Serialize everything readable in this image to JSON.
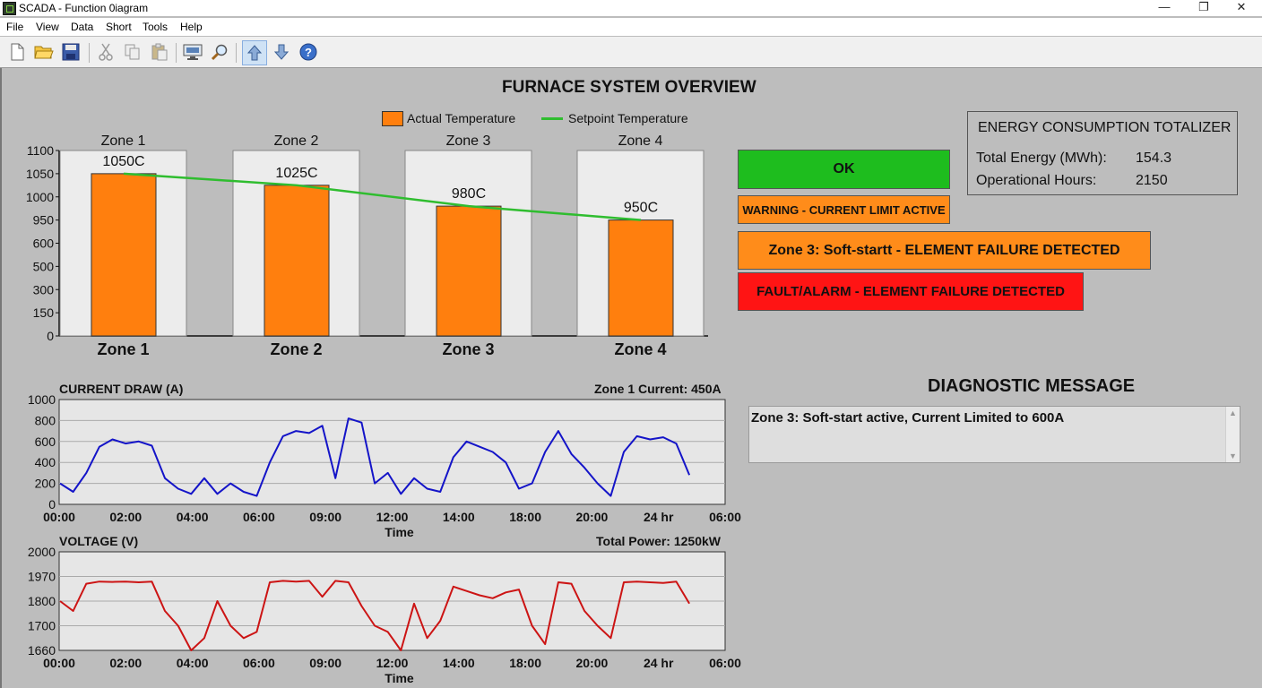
{
  "window": {
    "title": "SCADA - Function 0iagram",
    "minimize": "—",
    "maximize": "❐",
    "close": "✕"
  },
  "menu": [
    "File",
    "View",
    "Data",
    "Short",
    "Tools",
    "Help"
  ],
  "toolbar": [
    "new-file-icon",
    "open-folder-icon",
    "save-icon",
    "cut-icon",
    "copy-icon",
    "paste-icon",
    "monitor-icon",
    "search-icon",
    "arrow-up-icon",
    "arrow-down-icon",
    "help-icon"
  ],
  "overview": {
    "title": "FURNACE SYSTEM OVERVIEW",
    "legend_actual": "Actual Temperature",
    "legend_setpoint": "Setpoint Temperature"
  },
  "status": {
    "ok": "OK",
    "warning": "WARNING - CURRENT LIMIT ACTIVE",
    "zone3": "Zone 3: Soft-startt - ELEMENT FAILURE DETECTED",
    "fault": "FAULT/ALARM - ELEMENT FAILURE DETECTED",
    "colors": {
      "ok": "#1ebd1e",
      "warning": "#ff8c1a",
      "fault": "#ff1414"
    }
  },
  "energy": {
    "title": "ENERGY CONSUMPTION TOTALIZER",
    "total_label": "Total Energy (MWh):",
    "total_value": "154.3",
    "hours_label": "Operational Hours:",
    "hours_value": "2150"
  },
  "diagnostic": {
    "title": "DIAGNOSTIC MESSAGE",
    "message": "Zone 3: Soft-start active, Current Limited to 600A"
  },
  "chart_data": [
    {
      "type": "bar",
      "title": "",
      "y_ticks": [
        "1100",
        "1050",
        "1000",
        "950",
        "600",
        "500",
        "300",
        "150",
        "0"
      ],
      "categories": [
        "Zone 1",
        "Zone 2",
        "Zone 3",
        "Zone 4"
      ],
      "series": [
        {
          "name": "Actual Temperature",
          "values": [
            1050,
            1025,
            980,
            950
          ],
          "labels": [
            "1050C",
            "1025C",
            "980C",
            "950C"
          ],
          "color": "#ff7f0e"
        },
        {
          "name": "Setpoint Temperature",
          "values": [
            1050,
            1025,
            980,
            950
          ],
          "color": "#2fbd2f"
        }
      ],
      "grid": false
    },
    {
      "type": "line",
      "title": "CURRENT DRAW (A)",
      "annotation": "Zone 1 Current: 450A",
      "xlabel": "Time",
      "x_ticks": [
        "00:00",
        "02:00",
        "04:00",
        "06:00",
        "09:00",
        "12:00",
        "14:00",
        "18:00",
        "20:00",
        "24 hr",
        "06:00"
      ],
      "y_ticks": [
        "1000",
        "800",
        "600",
        "400",
        "200",
        "0"
      ],
      "ylim": [
        0,
        1000
      ],
      "series": [
        {
          "values": [
            200,
            120,
            300,
            550,
            620,
            580,
            600,
            560,
            250,
            150,
            100,
            250,
            100,
            200,
            120,
            80,
            400,
            650,
            700,
            680,
            750,
            250,
            820,
            780,
            200,
            300,
            100,
            250,
            150,
            120,
            450,
            600,
            550,
            500,
            400,
            150,
            200,
            500,
            700,
            480,
            350,
            200,
            80,
            500,
            650,
            620,
            640,
            580,
            280
          ],
          "color": "#1414c8"
        }
      ],
      "grid": true
    },
    {
      "type": "line",
      "title": "VOLTAGE (V)",
      "annotation": "Total Power: 1250kW",
      "xlabel": "Time",
      "x_ticks": [
        "00:00",
        "02:00",
        "04:00",
        "06:00",
        "09:00",
        "12:00",
        "14:00",
        "18:00",
        "20:00",
        "24 hr",
        "06:00"
      ],
      "y_ticks": [
        "2000",
        "1970",
        "1800",
        "1700",
        "1660"
      ],
      "ylim": [
        1660,
        2000
      ],
      "series": [
        {
          "values": [
            1800,
            1760,
            1920,
            1935,
            1932,
            1935,
            1930,
            1935,
            1760,
            1700,
            1660,
            1680,
            1800,
            1700,
            1680,
            1690,
            1930,
            1940,
            1935,
            1940,
            1830,
            1940,
            1930,
            1780,
            1700,
            1690,
            1660,
            1790,
            1680,
            1720,
            1900,
            1870,
            1840,
            1820,
            1860,
            1880,
            1700,
            1670,
            1930,
            1920,
            1760,
            1700,
            1680,
            1930,
            1935,
            1930,
            1925,
            1935,
            1790
          ],
          "color": "#cc1414"
        }
      ],
      "grid": true
    }
  ]
}
